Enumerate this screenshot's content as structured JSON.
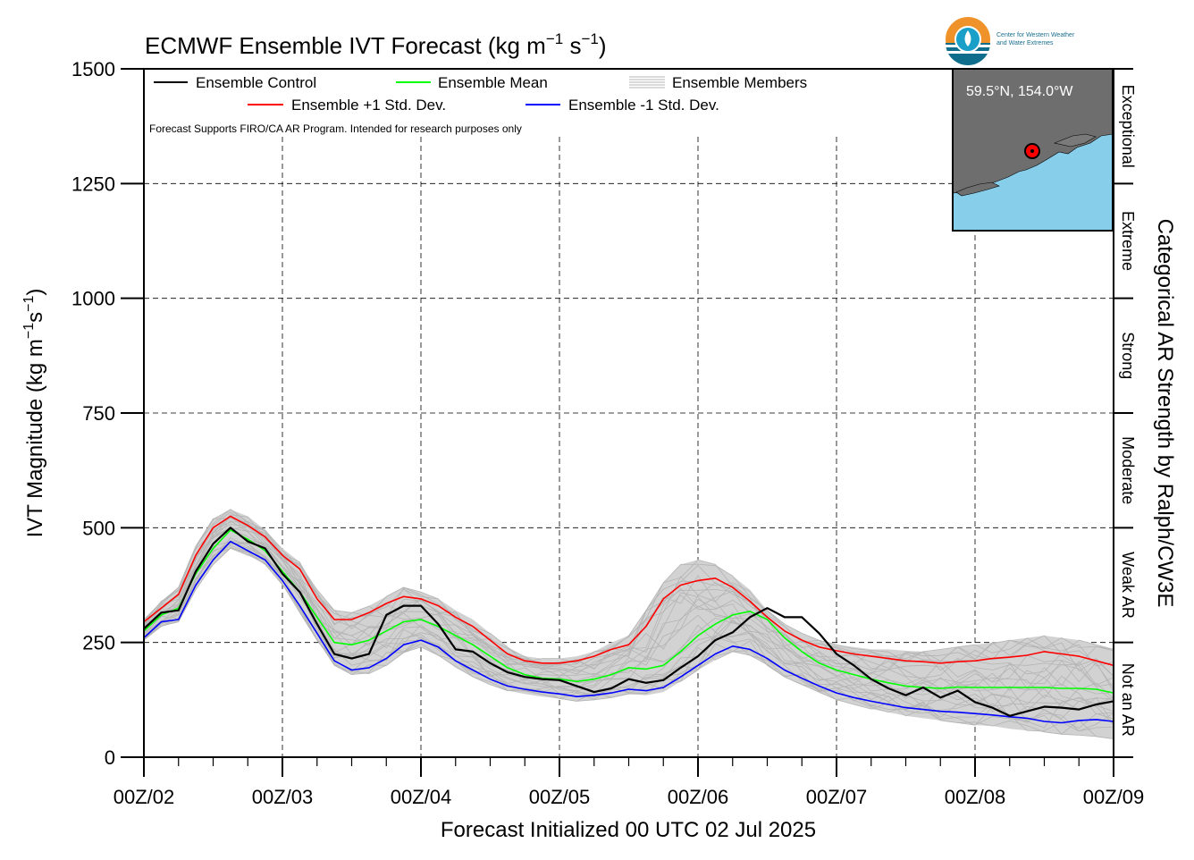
{
  "chart_data": {
    "type": "line",
    "title": "ECMWF Ensemble IVT Forecast (kg m",
    "title_exp1": "−1",
    "title_mid": " s",
    "title_exp2": "−1",
    "title_end": ")",
    "ylabel": "IVT Magnitude (kg m",
    "ylabel_exp1": "−1",
    "ylabel_mid": "s",
    "ylabel_exp2": "−1",
    "ylabel_end": ")",
    "xlabel": "Forecast Initialized 00 UTC 02 Jul 2025",
    "right_axis_label": "Categorical AR Strength by Ralph/CW3E",
    "ylim": [
      0,
      1500
    ],
    "yticks": [
      "0",
      "250",
      "500",
      "750",
      "1000",
      "1250",
      "1500"
    ],
    "xlim_hours": [
      0,
      168
    ],
    "xticks": [
      "00Z/02",
      "00Z/03",
      "00Z/04",
      "00Z/05",
      "00Z/06",
      "00Z/07",
      "00Z/08",
      "00Z/09"
    ],
    "grid": true,
    "legend": {
      "control": "Ensemble Control",
      "mean": "Ensemble Mean",
      "members": "Ensemble Members",
      "plus_sd": "Ensemble +1 Std. Dev.",
      "minus_sd": "Ensemble -1 Std. Dev.",
      "disclaimer": "Forecast Supports FIRO/CA AR Program. Intended for research purposes only"
    },
    "categories_right": [
      {
        "label": "Not an AR",
        "range": [
          0,
          250
        ]
      },
      {
        "label": "Weak AR",
        "range": [
          250,
          500
        ]
      },
      {
        "label": "Moderate",
        "range": [
          500,
          750
        ]
      },
      {
        "label": "Strong",
        "range": [
          750,
          1000
        ]
      },
      {
        "label": "Extreme",
        "range": [
          1000,
          1250
        ]
      },
      {
        "label": "Exceptional",
        "range": [
          1250,
          1500
        ]
      }
    ],
    "colors": {
      "control": "#000000",
      "mean": "#00ff00",
      "plus_sd": "#ff0000",
      "minus_sd": "#0000ff",
      "members": "#b4b4b4",
      "spread_fill": "#d2d2d2",
      "map_ocean": "#87ceeb",
      "map_land": "#6e6e6e"
    },
    "x_hours": [
      0,
      3,
      6,
      9,
      12,
      15,
      18,
      21,
      24,
      27,
      30,
      33,
      36,
      39,
      42,
      45,
      48,
      51,
      54,
      57,
      60,
      63,
      66,
      69,
      72,
      75,
      78,
      81,
      84,
      87,
      90,
      93,
      96,
      99,
      102,
      105,
      108,
      111,
      114,
      117,
      120,
      123,
      126,
      129,
      132,
      135,
      138,
      141,
      144,
      147,
      150,
      153,
      156,
      159,
      162,
      165,
      168
    ],
    "series": [
      {
        "name": "Ensemble Control",
        "values": [
          280,
          315,
          320,
          405,
          465,
          500,
          470,
          455,
          400,
          360,
          290,
          225,
          215,
          225,
          310,
          330,
          330,
          290,
          235,
          230,
          205,
          185,
          175,
          170,
          168,
          155,
          142,
          150,
          170,
          162,
          168,
          195,
          220,
          255,
          272,
          305,
          325,
          305,
          305,
          270,
          225,
          200,
          170,
          150,
          135,
          152,
          130,
          145,
          120,
          108,
          90,
          100,
          110,
          108,
          104,
          115,
          122
        ]
      },
      {
        "name": "Ensemble Mean",
        "values": [
          275,
          310,
          325,
          400,
          455,
          495,
          475,
          450,
          405,
          360,
          305,
          250,
          245,
          255,
          275,
          295,
          300,
          285,
          265,
          245,
          220,
          195,
          180,
          172,
          170,
          165,
          170,
          180,
          195,
          192,
          200,
          230,
          265,
          290,
          310,
          318,
          300,
          260,
          230,
          205,
          190,
          180,
          170,
          162,
          155,
          152,
          150,
          153,
          152,
          152,
          152,
          152,
          152,
          150,
          150,
          148,
          140
        ]
      },
      {
        "name": "Ensemble +1 Std. Dev.",
        "values": [
          295,
          325,
          355,
          440,
          500,
          525,
          505,
          480,
          440,
          410,
          345,
          300,
          300,
          315,
          335,
          350,
          345,
          330,
          305,
          285,
          255,
          225,
          210,
          205,
          205,
          210,
          220,
          235,
          245,
          285,
          345,
          375,
          385,
          390,
          370,
          340,
          305,
          275,
          255,
          240,
          232,
          225,
          220,
          215,
          210,
          208,
          205,
          208,
          210,
          215,
          218,
          222,
          230,
          225,
          220,
          210,
          200
        ]
      },
      {
        "name": "Ensemble -1 Std. Dev.",
        "values": [
          260,
          295,
          300,
          375,
          430,
          470,
          450,
          430,
          385,
          330,
          270,
          210,
          190,
          195,
          215,
          245,
          255,
          240,
          210,
          190,
          170,
          155,
          148,
          142,
          138,
          132,
          135,
          140,
          148,
          145,
          152,
          175,
          200,
          225,
          242,
          235,
          215,
          190,
          172,
          155,
          140,
          130,
          122,
          115,
          108,
          104,
          100,
          98,
          95,
          92,
          88,
          85,
          78,
          75,
          80,
          82,
          78
        ]
      }
    ],
    "members_band": {
      "upper": [
        300,
        340,
        370,
        460,
        520,
        540,
        525,
        495,
        455,
        425,
        365,
        320,
        315,
        330,
        350,
        370,
        360,
        345,
        320,
        300,
        270,
        240,
        220,
        215,
        215,
        220,
        230,
        250,
        265,
        320,
        380,
        420,
        430,
        420,
        395,
        365,
        320,
        290,
        270,
        255,
        245,
        240,
        235,
        235,
        232,
        230,
        235,
        240,
        245,
        250,
        255,
        260,
        265,
        260,
        255,
        245,
        235
      ],
      "lower": [
        255,
        285,
        295,
        365,
        420,
        455,
        440,
        420,
        375,
        315,
        255,
        200,
        180,
        182,
        200,
        228,
        240,
        222,
        195,
        175,
        158,
        145,
        138,
        132,
        128,
        122,
        125,
        130,
        138,
        135,
        142,
        165,
        190,
        212,
        230,
        222,
        200,
        175,
        158,
        140,
        125,
        115,
        105,
        98,
        90,
        85,
        80,
        75,
        70,
        68,
        62,
        58,
        55,
        50,
        48,
        45,
        40
      ]
    },
    "map_inset": {
      "location": "59.5°N, 154.0°W"
    },
    "logo": {
      "line1": "Center for Western Weather",
      "line2": "and Water Extremes"
    }
  }
}
